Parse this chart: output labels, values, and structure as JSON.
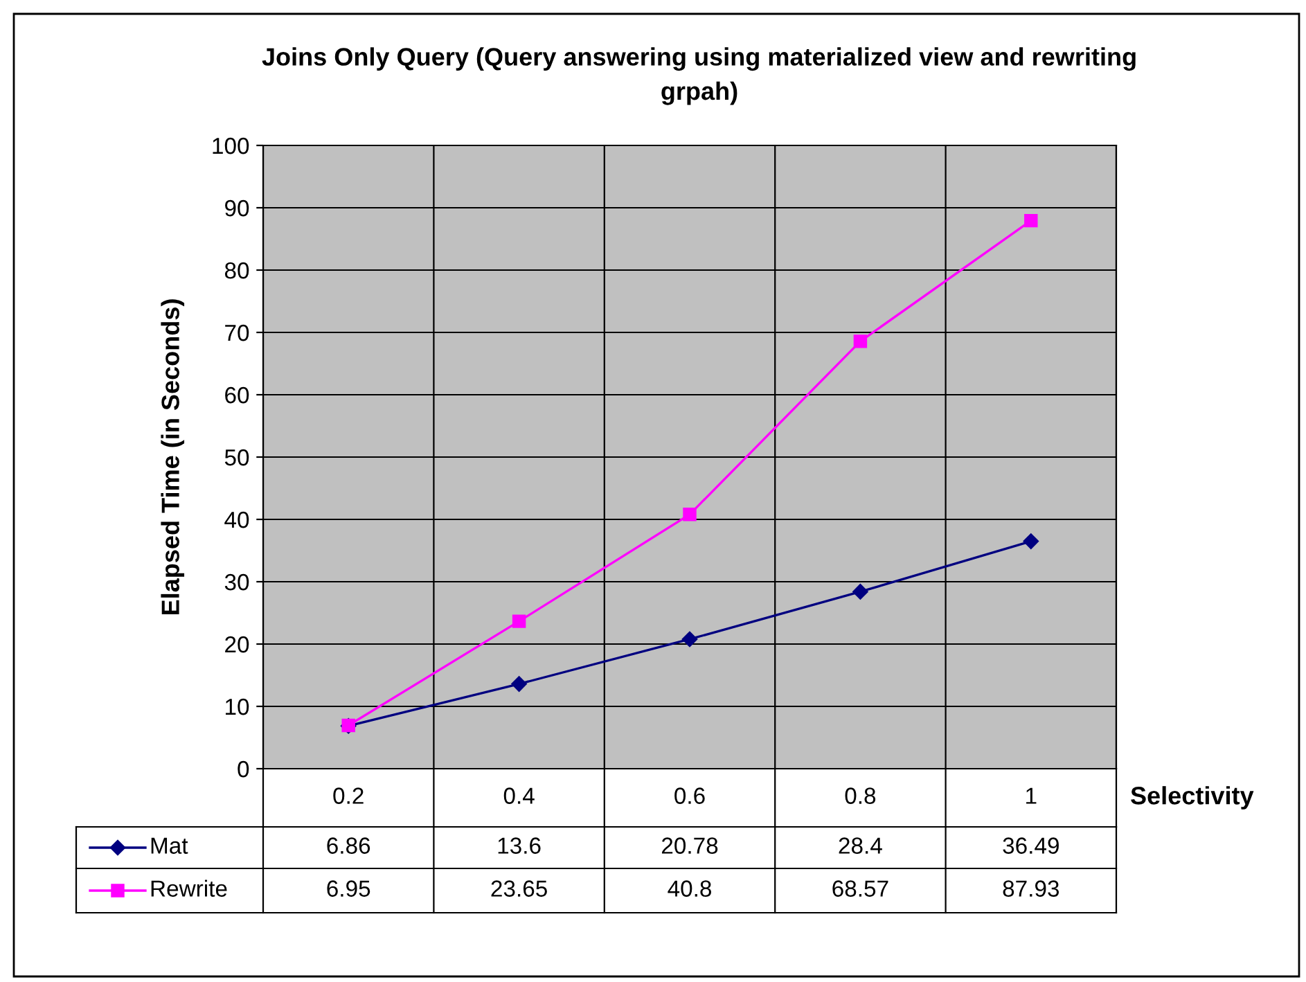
{
  "chart_data": {
    "type": "line",
    "title": "Joins Only Query (Query answering using materialized view and rewriting\ngrpah)",
    "xlabel": "Selectivity",
    "ylabel": "Elapsed Time (in Seconds)",
    "categories": [
      "0.2",
      "0.4",
      "0.6",
      "0.8",
      "1"
    ],
    "series": [
      {
        "name": "Mat",
        "color": "#000080",
        "marker": "diamond",
        "values": [
          6.86,
          13.6,
          20.78,
          28.4,
          36.49
        ]
      },
      {
        "name": "Rewrite",
        "color": "#ff00ff",
        "marker": "square",
        "values": [
          6.95,
          23.65,
          40.8,
          68.57,
          87.93
        ]
      }
    ],
    "ylim": [
      0,
      100
    ],
    "yticks": [
      0,
      10,
      20,
      30,
      40,
      50,
      60,
      70,
      80,
      90,
      100
    ],
    "grid": true,
    "legend": "bottom",
    "data_labels": true
  }
}
